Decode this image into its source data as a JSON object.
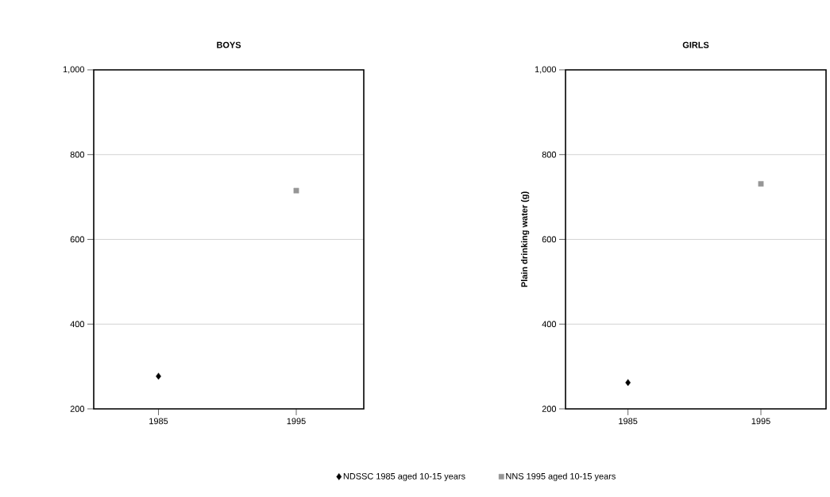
{
  "chart_data": [
    {
      "type": "scatter",
      "title": "BOYS",
      "categories": [
        "1985",
        "1995"
      ],
      "ylim": [
        200,
        1000
      ],
      "yticks": [
        200,
        400,
        600,
        800,
        {
          "value": 1000,
          "label": "1,000"
        }
      ],
      "grid": "y",
      "series": [
        {
          "color": "#000000",
          "marker": "diamond",
          "values": [
            277,
            null
          ]
        },
        {
          "color": "#969696",
          "marker": "square",
          "values": [
            null,
            715
          ]
        }
      ]
    },
    {
      "type": "scatter",
      "title": "GIRLS",
      "ylabel": "Plain drinking water (g)",
      "categories": [
        "1985",
        "1995"
      ],
      "ylim": [
        200,
        1000
      ],
      "yticks": [
        200,
        400,
        600,
        800,
        {
          "value": 1000,
          "label": "1,000"
        }
      ],
      "grid": "y",
      "legend": "bottom",
      "series": [
        {
          "name": "NDSSC 1985 aged 10-15 years",
          "color": "#000000",
          "marker": "diamond",
          "values": [
            262,
            null
          ]
        },
        {
          "name": "NNS 1995 aged 10-15 years",
          "color": "#969696",
          "marker": "square",
          "values": [
            null,
            731
          ]
        }
      ]
    }
  ]
}
